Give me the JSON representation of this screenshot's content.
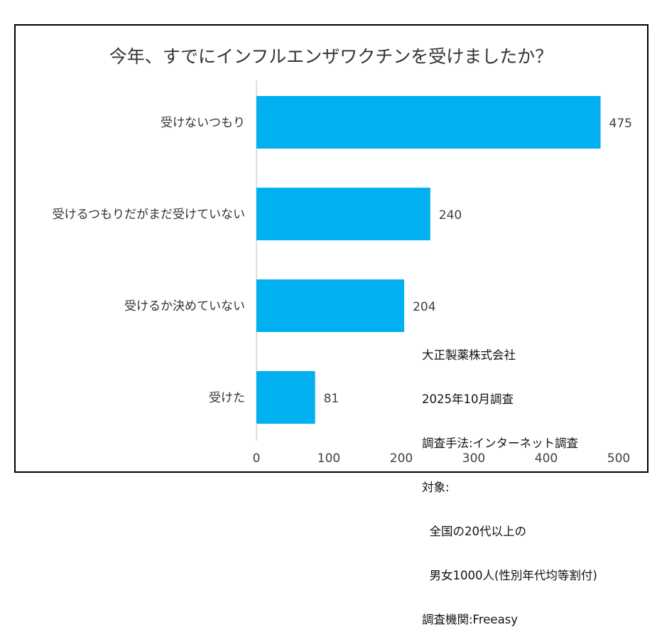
{
  "chart_data": {
    "type": "bar",
    "orientation": "horizontal",
    "title": "今年、すでにインフルエンザワクチンを受けましたか？",
    "categories": [
      "受けないつもり",
      "受けるつもりだがまだ受けていない",
      "受けるか決めていない",
      "受けた"
    ],
    "values": [
      475,
      240,
      204,
      81
    ],
    "xlim": [
      0,
      500
    ],
    "xticks": [
      0,
      100,
      200,
      300,
      400,
      500
    ],
    "grid": false,
    "bar_color": "#00b0f0",
    "data_labels": true
  },
  "note": {
    "lines": [
      "大正製薬株式会社",
      "2025年10月調査",
      "調査手法:インターネット調査",
      "対象:",
      "  全国の20代以上の",
      "  男女1000人(性別年代均等割付)",
      "調査機関:Freeasy"
    ]
  }
}
